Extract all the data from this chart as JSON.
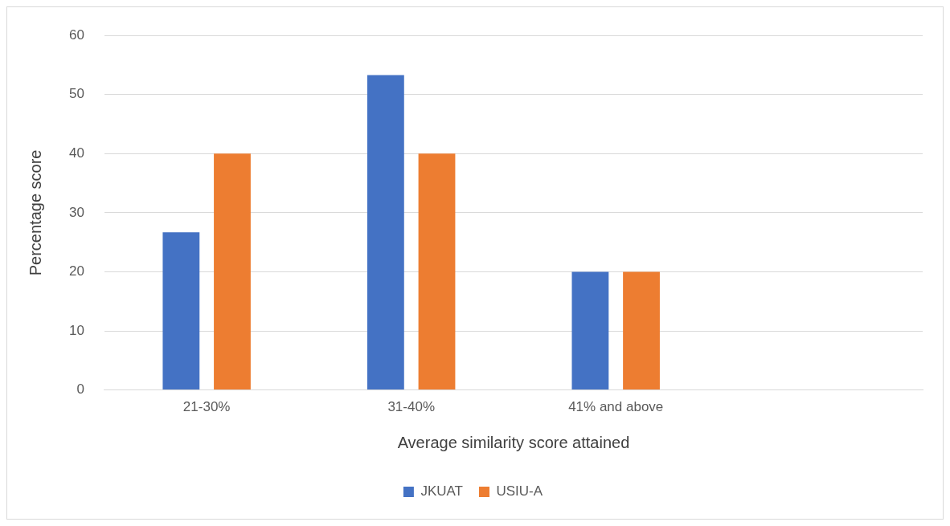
{
  "chart_data": {
    "type": "bar",
    "xlabel": "Average similarity score attained",
    "ylabel": "Percentage score",
    "categories": [
      "21-30%",
      "31-40%",
      "41% and above",
      null
    ],
    "series": [
      {
        "name": "JKUAT",
        "color": "#4472c4",
        "values": [
          26.7,
          53.3,
          20,
          null
        ]
      },
      {
        "name": "USIU-A",
        "color": "#ed7d31",
        "values": [
          40,
          40,
          20,
          null
        ]
      }
    ],
    "ylim": [
      0,
      60
    ],
    "yticks": [
      0,
      10,
      20,
      30,
      40,
      50,
      60
    ],
    "grid": "y",
    "legend": "bottom"
  }
}
